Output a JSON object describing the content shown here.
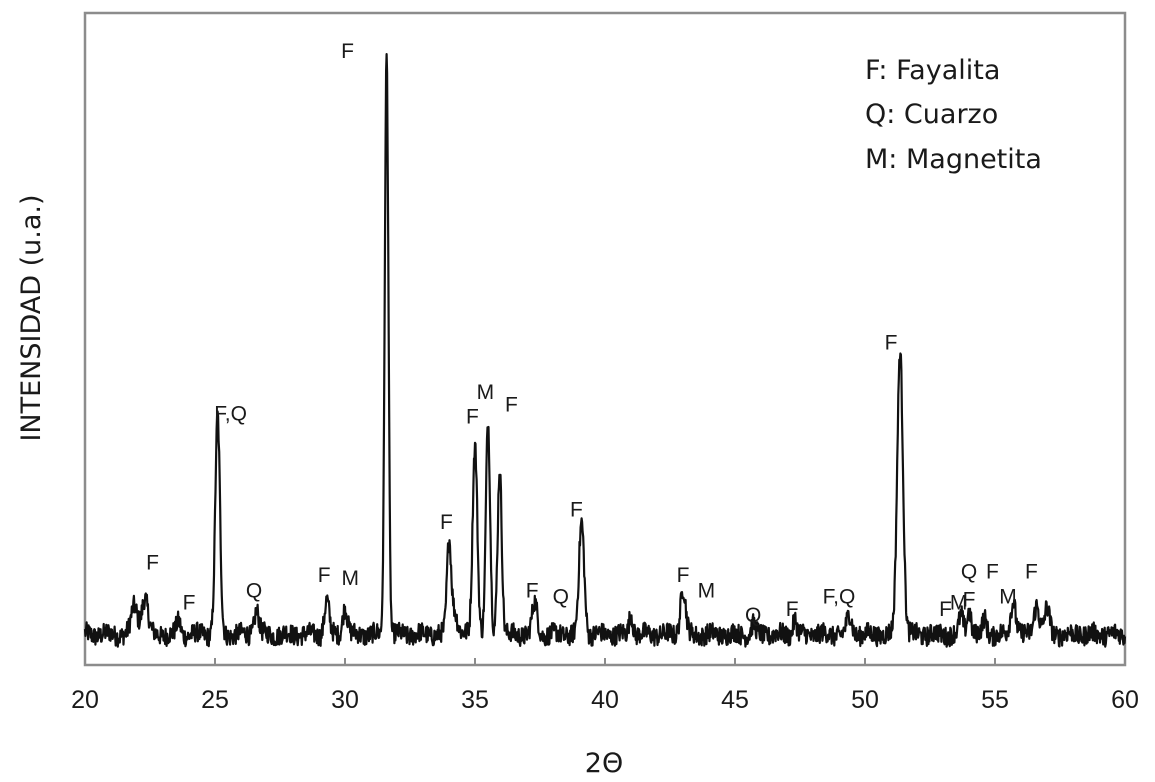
{
  "chart_data": {
    "type": "line",
    "title": "",
    "xlabel": "2Θ",
    "ylabel": "INTENSIDAD (u.a.)",
    "xlim": [
      20,
      60
    ],
    "ylim": [
      0,
      100
    ],
    "x_ticks": [
      "20",
      "25",
      "30",
      "35",
      "40",
      "45",
      "50",
      "55",
      "60"
    ],
    "grid": false,
    "legend_position": "top-right",
    "legend": [
      "F: Fayalita",
      "Q: Cuarzo",
      "M: Magnetita"
    ],
    "color": "#111111",
    "baseline": 2.5,
    "noise_amplitude": 1.6,
    "peaks": [
      {
        "x": 21.9,
        "height": 4.5,
        "width": 0.12
      },
      {
        "x": 22.3,
        "height": 6.0,
        "width": 0.12
      },
      {
        "x": 23.6,
        "height": 2.0,
        "width": 0.08
      },
      {
        "x": 25.1,
        "height": 35.0,
        "width": 0.09
      },
      {
        "x": 26.6,
        "height": 4.0,
        "width": 0.09
      },
      {
        "x": 29.3,
        "height": 5.5,
        "width": 0.09
      },
      {
        "x": 30.0,
        "height": 4.5,
        "width": 0.09
      },
      {
        "x": 31.6,
        "height": 94.0,
        "width": 0.07
      },
      {
        "x": 34.0,
        "height": 14.5,
        "width": 0.08
      },
      {
        "x": 34.2,
        "height": 4.0,
        "width": 0.12
      },
      {
        "x": 35.0,
        "height": 31.0,
        "width": 0.09
      },
      {
        "x": 35.5,
        "height": 34.0,
        "width": 0.08
      },
      {
        "x": 35.95,
        "height": 27.0,
        "width": 0.08
      },
      {
        "x": 37.3,
        "height": 5.0,
        "width": 0.1
      },
      {
        "x": 39.1,
        "height": 18.0,
        "width": 0.1
      },
      {
        "x": 41.0,
        "height": 3.5,
        "width": 0.07
      },
      {
        "x": 43.0,
        "height": 7.5,
        "width": 0.1
      },
      {
        "x": 45.7,
        "height": 1.5,
        "width": 0.08
      },
      {
        "x": 47.3,
        "height": 2.5,
        "width": 0.07
      },
      {
        "x": 49.4,
        "height": 3.0,
        "width": 0.1
      },
      {
        "x": 51.35,
        "height": 46.0,
        "width": 0.11
      },
      {
        "x": 53.7,
        "height": 3.0,
        "width": 0.08
      },
      {
        "x": 54.0,
        "height": 4.0,
        "width": 0.08
      },
      {
        "x": 54.6,
        "height": 2.5,
        "width": 0.08
      },
      {
        "x": 55.7,
        "height": 5.5,
        "width": 0.1
      },
      {
        "x": 56.6,
        "height": 5.0,
        "width": 0.1
      },
      {
        "x": 57.0,
        "height": 4.0,
        "width": 0.1
      }
    ],
    "peak_labels": [
      {
        "text": "F",
        "x": 22.6,
        "y": 13
      },
      {
        "text": "F",
        "x": 24.0,
        "y": 6.5
      },
      {
        "text": "F,Q",
        "x": 25.6,
        "y": 37
      },
      {
        "text": "Q",
        "x": 26.5,
        "y": 8.5
      },
      {
        "text": "F",
        "x": 29.2,
        "y": 11
      },
      {
        "text": "M",
        "x": 30.2,
        "y": 10.5
      },
      {
        "text": "F",
        "x": 30.1,
        "y": 95.5
      },
      {
        "text": "F",
        "x": 33.9,
        "y": 19.5
      },
      {
        "text": "F",
        "x": 34.9,
        "y": 36.5
      },
      {
        "text": "M",
        "x": 35.4,
        "y": 40.5
      },
      {
        "text": "F",
        "x": 36.4,
        "y": 38.5
      },
      {
        "text": "F",
        "x": 37.2,
        "y": 8.5
      },
      {
        "text": "Q",
        "x": 38.3,
        "y": 7.5
      },
      {
        "text": "F",
        "x": 38.9,
        "y": 21.5
      },
      {
        "text": "F",
        "x": 43.0,
        "y": 11
      },
      {
        "text": "M",
        "x": 43.9,
        "y": 8.5
      },
      {
        "text": "Q",
        "x": 45.7,
        "y": 4.5
      },
      {
        "text": "F",
        "x": 47.2,
        "y": 5.5
      },
      {
        "text": "F,Q",
        "x": 49.0,
        "y": 7.5
      },
      {
        "text": "F",
        "x": 51.0,
        "y": 48.5
      },
      {
        "text": "F",
        "x": 53.1,
        "y": 5.5
      },
      {
        "text": "M",
        "x": 53.6,
        "y": 6.5
      },
      {
        "text": "F",
        "x": 54.0,
        "y": 7.0
      },
      {
        "text": "Q",
        "x": 54.0,
        "y": 11.5
      },
      {
        "text": "F",
        "x": 54.9,
        "y": 11.5
      },
      {
        "text": "M",
        "x": 55.5,
        "y": 7.5
      },
      {
        "text": "F",
        "x": 56.4,
        "y": 11.5
      }
    ]
  }
}
